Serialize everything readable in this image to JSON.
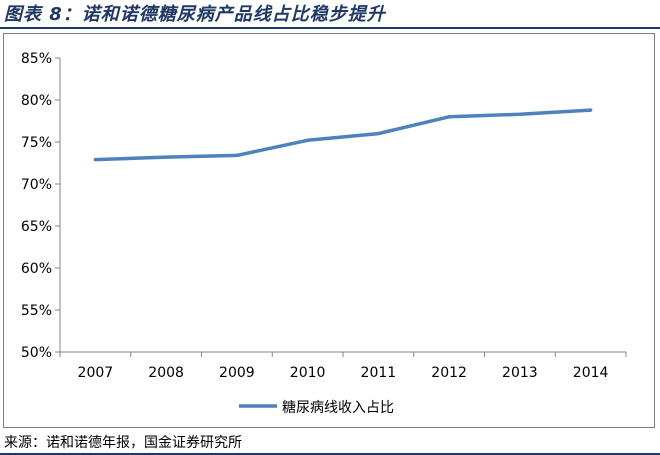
{
  "figure_title": "图表 8：诺和诺德糖尿病产品线占比稳步提升",
  "source": "来源：诺和诺德年报，国金证券研究所",
  "chart_data": {
    "type": "line",
    "title": "",
    "xlabel": "",
    "ylabel": "",
    "x": [
      "2007",
      "2008",
      "2009",
      "2010",
      "2011",
      "2012",
      "2013",
      "2014"
    ],
    "series": [
      {
        "name": "糖尿病线收入占比",
        "color": "#4f81bd",
        "values": [
          72.9,
          73.2,
          73.4,
          75.2,
          76.0,
          78.0,
          78.3,
          78.8
        ]
      }
    ],
    "ylim": [
      50,
      85
    ],
    "yticks": [
      50,
      55,
      60,
      65,
      70,
      75,
      80,
      85
    ],
    "ytick_labels": [
      "50%",
      "55%",
      "60%",
      "65%",
      "70%",
      "75%",
      "80%",
      "85%"
    ],
    "grid": false,
    "legend_position": "bottom"
  }
}
